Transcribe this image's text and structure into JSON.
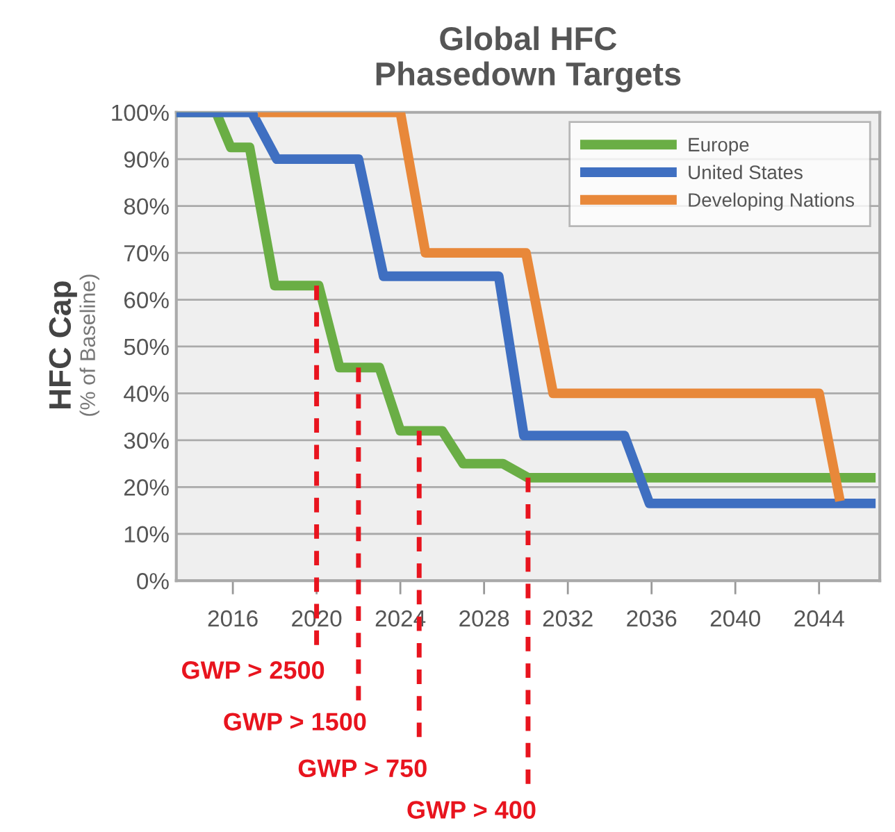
{
  "chart_data": {
    "type": "line",
    "title": "Global HFC\nPhasedown Targets",
    "ylabel": "HFC Cap\n(% of Baseline)",
    "series": [
      {
        "name": "Europe",
        "color": "#6aae45",
        "x": [
          2013.3,
          2015.2,
          2015.9,
          2016.8,
          2018,
          2020.1,
          2021.1,
          2023,
          2024,
          2026,
          2027,
          2028.9,
          2030.1,
          2046.7
        ],
        "values": [
          100,
          100,
          92.5,
          92.5,
          63,
          63,
          45.5,
          45.5,
          32,
          32,
          25,
          25,
          22,
          22
        ]
      },
      {
        "name": "United States",
        "color": "#3f6fc1",
        "x": [
          2013.3,
          2016.9,
          2018.1,
          2022,
          2023.2,
          2028.7,
          2029.9,
          2034.7,
          2035.9,
          2046.7
        ],
        "values": [
          100,
          100,
          90,
          90,
          65,
          65,
          31,
          31,
          16.5,
          16.5
        ]
      },
      {
        "name": "Developing Nations",
        "color": "#e8883a",
        "x": [
          2017.2,
          2024,
          2025.2,
          2030,
          2031.3,
          2044,
          2045
        ],
        "values": [
          100,
          100,
          70,
          70,
          40,
          40,
          17
        ]
      }
    ],
    "xlim": [
      2013.3,
      2046.9
    ],
    "xticks": [
      2016,
      2020,
      2024,
      2028,
      2032,
      2036,
      2040,
      2044
    ],
    "ylim": [
      0,
      100
    ],
    "yticks": [
      {
        "value": 0,
        "label": "0%"
      },
      {
        "value": 10,
        "label": "10%"
      },
      {
        "value": 20,
        "label": "20%"
      },
      {
        "value": 30,
        "label": "30%"
      },
      {
        "value": 40,
        "label": "40%"
      },
      {
        "value": 50,
        "label": "50%"
      },
      {
        "value": 60,
        "label": "60%"
      },
      {
        "value": 70,
        "label": "70%"
      },
      {
        "value": 80,
        "label": "80%"
      },
      {
        "value": 90,
        "label": "90%"
      },
      {
        "value": 100,
        "label": "100%"
      }
    ],
    "grid": "y",
    "legend": "top right",
    "line_style": "solid",
    "marker": "none",
    "annotations": [
      {
        "text": "GWP > 2500",
        "x": 2020,
        "y": 63
      },
      {
        "text": "GWP > 1500",
        "x": 2022,
        "y": 45.5
      },
      {
        "text": "GWP > 750",
        "x": 2024.9,
        "y": 32
      },
      {
        "text": "GWP > 400",
        "x": 2030.1,
        "y": 22
      }
    ]
  }
}
